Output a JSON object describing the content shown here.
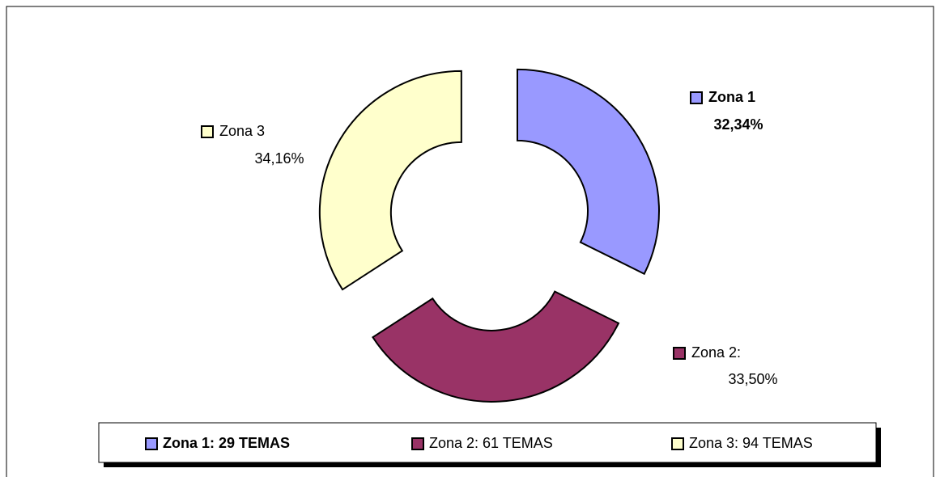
{
  "chart_data": {
    "type": "donut",
    "label_names": [
      "Zona 1",
      "Zona 2:",
      "Zona 3"
    ],
    "values": [
      32.34,
      33.5,
      34.16
    ],
    "value_labels": [
      "32,34%",
      "33,50%",
      "34,16%"
    ],
    "colors": [
      "#9999ff",
      "#993366",
      "#ffffcc"
    ],
    "legend_entries": [
      "Zona 1: 29 TEMAS",
      "Zona 2: 61 TEMAS",
      "Zona 3: 94 TEMAS"
    ],
    "emphasis": [
      true,
      false,
      false
    ],
    "legend": "bottom"
  }
}
